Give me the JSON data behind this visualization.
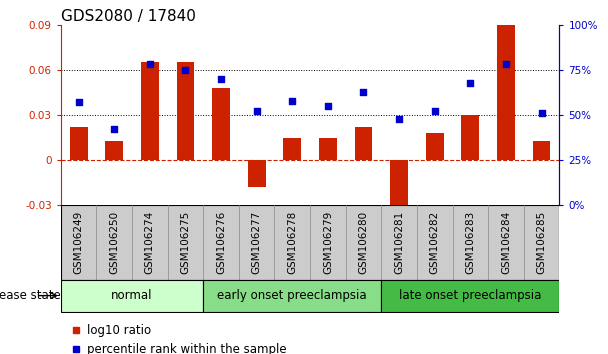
{
  "title": "GDS2080 / 17840",
  "samples": [
    "GSM106249",
    "GSM106250",
    "GSM106274",
    "GSM106275",
    "GSM106276",
    "GSM106277",
    "GSM106278",
    "GSM106279",
    "GSM106280",
    "GSM106281",
    "GSM106282",
    "GSM106283",
    "GSM106284",
    "GSM106285"
  ],
  "log10_ratio": [
    0.022,
    0.013,
    0.065,
    0.065,
    0.048,
    -0.018,
    0.015,
    0.015,
    0.022,
    -0.033,
    0.018,
    0.03,
    0.092,
    0.013
  ],
  "percentile_rank": [
    57,
    42,
    78,
    75,
    70,
    52,
    58,
    55,
    63,
    48,
    52,
    68,
    78,
    51
  ],
  "left_ylim": [
    -0.03,
    0.09
  ],
  "right_ylim": [
    0,
    100
  ],
  "left_yticks": [
    -0.03,
    0,
    0.03,
    0.06,
    0.09
  ],
  "right_yticks": [
    0,
    25,
    50,
    75,
    100
  ],
  "left_ytick_labels": [
    "-0.03",
    "0",
    "0.03",
    "0.06",
    "0.09"
  ],
  "right_ytick_labels": [
    "0%",
    "25%",
    "50%",
    "75%",
    "100%"
  ],
  "hlines": [
    0.03,
    0.06
  ],
  "bar_color": "#cc2200",
  "scatter_color": "#0000cc",
  "zero_line_color": "#cc2200",
  "groups": [
    {
      "label": "normal",
      "start": 0,
      "end": 3,
      "color": "#ccffcc"
    },
    {
      "label": "early onset preeclampsia",
      "start": 4,
      "end": 8,
      "color": "#88dd88"
    },
    {
      "label": "late onset preeclampsia",
      "start": 9,
      "end": 13,
      "color": "#44bb44"
    }
  ],
  "legend_items": [
    {
      "label": "log10 ratio",
      "color": "#cc2200"
    },
    {
      "label": "percentile rank within the sample",
      "color": "#0000cc"
    }
  ],
  "disease_state_label": "disease state",
  "bar_width": 0.5,
  "title_fontsize": 11,
  "tick_fontsize": 7.5,
  "label_fontsize": 8.5,
  "group_label_fontsize": 8.5,
  "sample_box_color": "#cccccc",
  "sample_box_edge": "#888888"
}
